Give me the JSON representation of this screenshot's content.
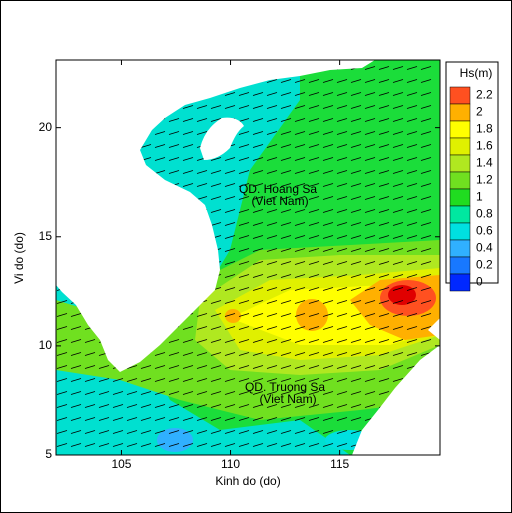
{
  "chart_data": {
    "type": "contour-map",
    "xlabel": "Kinh do (do)",
    "ylabel": "Vi do (do)",
    "xlim": [
      102,
      119.6
    ],
    "ylim": [
      5,
      23.1
    ],
    "xticks": [
      105,
      110,
      115
    ],
    "yticks": [
      5,
      10,
      15,
      20
    ],
    "colorbar": {
      "title": "Hs(m)",
      "levels": [
        0,
        0.2,
        0.4,
        0.6,
        0.8,
        1,
        1.2,
        1.4,
        1.6,
        1.8,
        2,
        2.2
      ],
      "colors": [
        "#0028ff",
        "#1878ff",
        "#30b0ff",
        "#00e0e0",
        "#00e8a0",
        "#20dc20",
        "#70e020",
        "#b0e820",
        "#e0f000",
        "#ffff00",
        "#ffb000",
        "#ff5020"
      ]
    },
    "annotations": [
      "QD. Hoang Sa",
      "(Viet Nam)",
      "QD. Truong Sa",
      "(Viet Nam)"
    ]
  }
}
